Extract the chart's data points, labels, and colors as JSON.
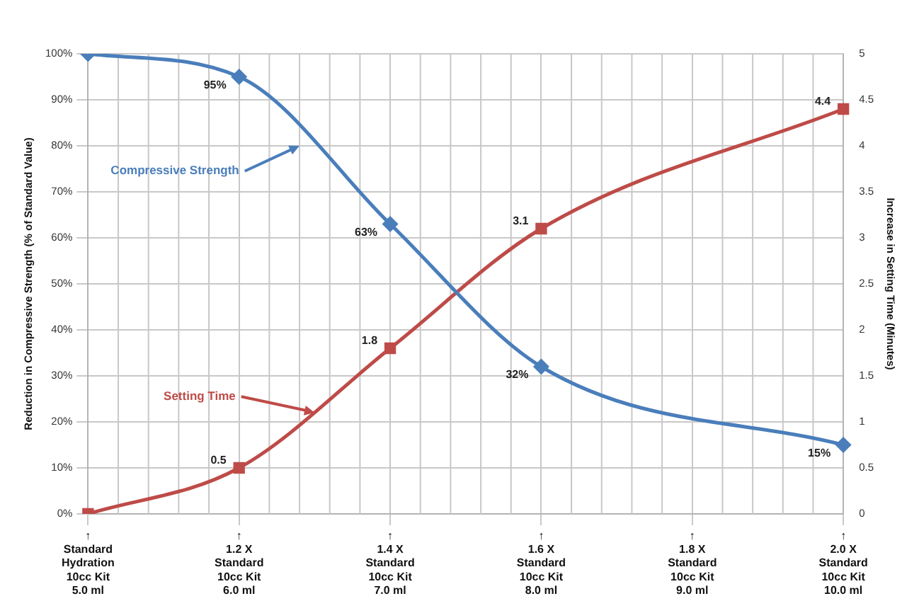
{
  "chart_data": {
    "type": "line",
    "ylabel": "Reduction in Compressive Strength (% of Standard Value)",
    "y2label": "Increase in Setting Time (Minutes)",
    "categories": [
      "↑\nStandard\nHydration\n10cc Kit\n5.0 ml",
      "↑\n1.2 X\nStandard\n10cc Kit\n6.0 ml",
      "↑\n1.4 X\nStandard\n10cc Kit\n7.0 ml",
      "↑\n1.6 X\nStandard\n10cc Kit\n8.0 ml",
      "↑\n1.8 X\nStandard\n10cc Kit\n9.0 ml",
      "↑\n2.0 X\nStandard\n10cc Kit\n10.0 ml"
    ],
    "series": [
      {
        "name": "Compressive Strength",
        "color": "#4a7ebb",
        "values": [
          100,
          95,
          63,
          32,
          null,
          15
        ],
        "value_labels": [
          null,
          "95%",
          "63%",
          "32%",
          null,
          "15%"
        ],
        "marker": "diamond"
      },
      {
        "name": "Setting Time",
        "color": "#be4b48",
        "axis": "y2",
        "values": [
          0,
          0.5,
          1.8,
          3.1,
          null,
          4.4
        ],
        "value_labels": [
          null,
          "0.5",
          "1.8",
          "3.1",
          null,
          "4.4"
        ],
        "marker": "square"
      }
    ],
    "ylim": [
      0,
      100
    ],
    "yticks": [
      {
        "value": 0,
        "label": "0%"
      },
      {
        "value": 10,
        "label": "10%"
      },
      {
        "value": 20,
        "label": "20%"
      },
      {
        "value": 30,
        "label": "30%"
      },
      {
        "value": 40,
        "label": "40%"
      },
      {
        "value": 50,
        "label": "50%"
      },
      {
        "value": 60,
        "label": "60%"
      },
      {
        "value": 70,
        "label": "70%"
      },
      {
        "value": 80,
        "label": "80%"
      },
      {
        "value": 90,
        "label": "90%"
      },
      {
        "value": 100,
        "label": "100%"
      }
    ],
    "y2lim": [
      0,
      5
    ],
    "y2ticks": [
      0,
      0.5,
      1,
      1.5,
      2,
      2.5,
      3,
      3.5,
      4,
      4.5,
      5
    ],
    "grid": true,
    "legend": "left",
    "line_style": "solid"
  }
}
